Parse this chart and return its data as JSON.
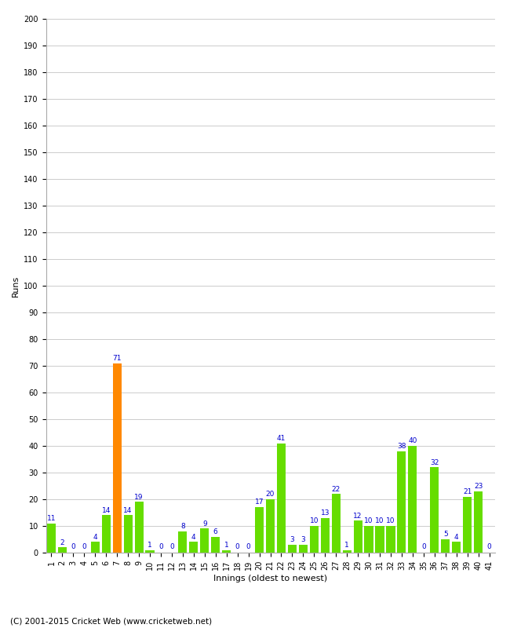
{
  "xlabel": "Innings (oldest to newest)",
  "ylabel": "Runs",
  "ylim": [
    0,
    200
  ],
  "yticks": [
    0,
    10,
    20,
    30,
    40,
    50,
    60,
    70,
    80,
    90,
    100,
    110,
    120,
    130,
    140,
    150,
    160,
    170,
    180,
    190,
    200
  ],
  "innings": [
    1,
    2,
    3,
    4,
    5,
    6,
    7,
    8,
    9,
    10,
    11,
    12,
    13,
    14,
    15,
    16,
    17,
    18,
    19,
    20,
    21,
    22,
    23,
    24,
    25,
    26,
    27,
    28,
    29,
    30,
    31,
    32,
    33,
    34,
    35,
    36,
    37,
    38,
    39,
    40,
    41
  ],
  "values": [
    11,
    2,
    0,
    0,
    4,
    14,
    71,
    14,
    19,
    1,
    0,
    0,
    8,
    4,
    9,
    6,
    1,
    0,
    0,
    17,
    20,
    41,
    3,
    3,
    10,
    13,
    22,
    1,
    12,
    10,
    10,
    10,
    38,
    40,
    0,
    32,
    5,
    4,
    21,
    23,
    0
  ],
  "bar_colors_default": "#66dd00",
  "bar_color_highlight": "#ff8800",
  "highlight_index": 6,
  "value_color": "#0000cc",
  "value_fontsize": 6.5,
  "axis_label_fontsize": 8,
  "tick_fontsize": 7,
  "footer": "(C) 2001-2015 Cricket Web (www.cricketweb.net)",
  "footer_fontsize": 7.5,
  "bg_color": "#ffffff",
  "grid_color": "#cccccc"
}
